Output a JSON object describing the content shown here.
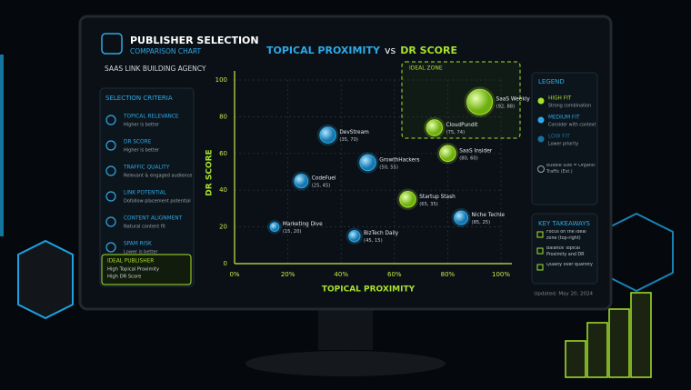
{
  "header": {
    "title": "PUBLISHER SELECTION",
    "subtitle": "COMPARISON CHART",
    "agency": "SAAS LINK BUILDING AGENCY"
  },
  "criteria": {
    "title": "SELECTION CRITERIA",
    "items": [
      {
        "title": "TOPICAL RELEVANCE",
        "note": "Higher is better"
      },
      {
        "title": "DR SCORE",
        "note": "Higher is better"
      },
      {
        "title": "TRAFFIC QUALITY",
        "note": "Relevant & engaged audience"
      },
      {
        "title": "LINK POTENTIAL",
        "note": "Dofollow placement potential"
      },
      {
        "title": "CONTENT ALIGNMENT",
        "note": "Natural content fit"
      },
      {
        "title": "SPAM RISK",
        "note": "Lower is better"
      }
    ],
    "ideal": {
      "title": "IDEAL PUBLISHER",
      "lines": [
        "High Topical Proximity",
        "High DR Score"
      ]
    }
  },
  "chart_data": {
    "type": "scatter",
    "title_parts": [
      "TOPICAL PROXIMITY",
      "vs",
      "DR SCORE"
    ],
    "x_label": "TOPICAL PROXIMITY",
    "y_label": "DR SCORE",
    "zone_label": "IDEAL ZONE",
    "xlim": [
      0,
      100
    ],
    "ylim": [
      0,
      100
    ],
    "xticks": [
      {
        "value": 0,
        "label": "0%"
      },
      {
        "value": 20,
        "label": "20%"
      },
      {
        "value": 40,
        "label": "40%"
      },
      {
        "value": 60,
        "label": "60%"
      },
      {
        "value": 80,
        "label": "80%"
      },
      {
        "value": 100,
        "label": "100%"
      }
    ],
    "yticks": [
      0,
      20,
      40,
      60,
      80,
      100
    ],
    "grid": true,
    "legend_title": "LEGEND",
    "size_note": "Bubble Size = Organic Traffic (Est.)",
    "series": [
      {
        "name": "HIGH FIT",
        "note": "Strong combination",
        "color": "#a6e22e",
        "labels": [
          "SaaS Weekly",
          "CloudPundit",
          "SaaS Insider",
          "Startup Stash"
        ],
        "x": [
          92,
          75,
          80,
          65
        ],
        "y": [
          88,
          74,
          60,
          35
        ],
        "sizes": [
          5,
          3,
          3,
          3
        ],
        "point_labels": [
          "(92, 88)",
          "(75, 74)",
          "(80, 60)",
          "(65, 35)"
        ]
      },
      {
        "name": "MEDIUM FIT",
        "note": "Consider with context",
        "color": "#2ea8e6",
        "labels": [
          "DevStream",
          "GrowthHackers",
          "CodeFuel",
          "Niche Techie",
          "Marketing Dive",
          "BizTech Daily"
        ],
        "x": [
          35,
          50,
          25,
          85,
          15,
          45
        ],
        "y": [
          70,
          55,
          45,
          25,
          20,
          15
        ],
        "sizes": [
          3,
          3,
          2.5,
          2.5,
          1.5,
          2
        ],
        "point_labels": [
          "(35, 70)",
          "(50, 55)",
          "(25, 45)",
          "(85, 25)",
          "(15, 20)",
          "(45, 15)"
        ]
      },
      {
        "name": "LOW FIT",
        "note": "Lower priority",
        "color": "#1a6fa0",
        "labels": [],
        "x": [],
        "y": [],
        "sizes": [],
        "point_labels": []
      }
    ]
  },
  "takeaways": {
    "title": "KEY TAKEAWAYS",
    "items": [
      "Focus on the ideal zone (top-right)",
      "Balance Topical Proximity and DR",
      "Quality over quantity"
    ]
  },
  "updated": "Updated: May 20, 2024"
}
